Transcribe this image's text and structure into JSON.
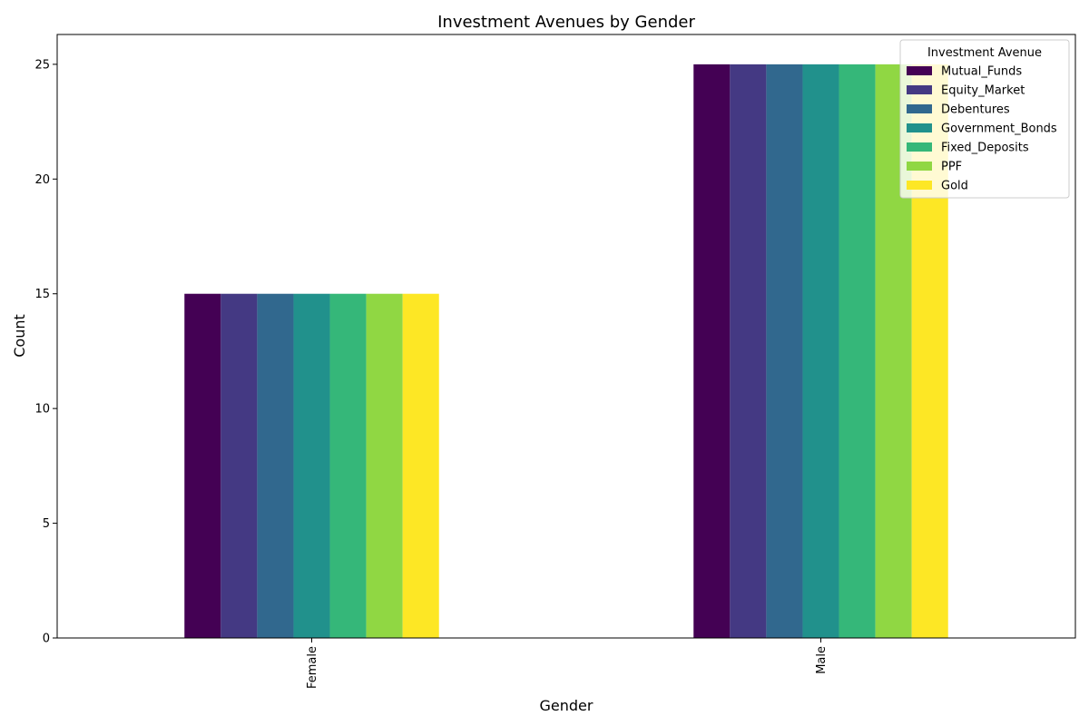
{
  "chart_data": {
    "type": "bar",
    "title": "Investment Avenues by Gender",
    "xlabel": "Gender",
    "ylabel": "Count",
    "categories": [
      "Female",
      "Male"
    ],
    "ylim": [
      0,
      26.3
    ],
    "yticks": [
      0,
      5,
      10,
      15,
      20,
      25
    ],
    "grid": false,
    "legend": {
      "title": "Investment Avenue",
      "placement": "top-right"
    },
    "series": [
      {
        "name": "Mutual_Funds",
        "color": "#440154",
        "values": [
          15,
          25
        ]
      },
      {
        "name": "Equity_Market",
        "color": "#443983",
        "values": [
          15,
          25
        ]
      },
      {
        "name": "Debentures",
        "color": "#31688e",
        "values": [
          15,
          25
        ]
      },
      {
        "name": "Government_Bonds",
        "color": "#21918c",
        "values": [
          15,
          25
        ]
      },
      {
        "name": "Fixed_Deposits",
        "color": "#35b779",
        "values": [
          15,
          25
        ]
      },
      {
        "name": "PPF",
        "color": "#90d743",
        "values": [
          15,
          25
        ]
      },
      {
        "name": "Gold",
        "color": "#fde725",
        "values": [
          15,
          25
        ]
      }
    ]
  }
}
